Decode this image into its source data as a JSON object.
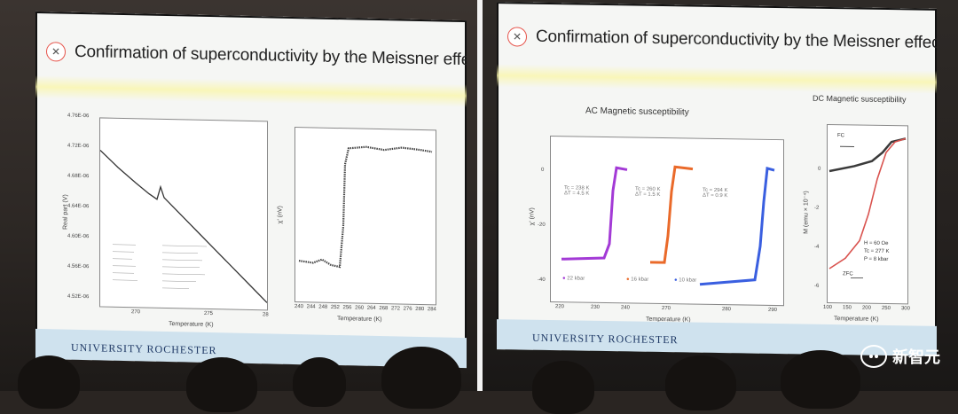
{
  "left_slide": {
    "title": "Confirmation of superconductivity by the Meissner effect",
    "icon": "circle-x-icon",
    "plot1": {
      "ylabel": "Real part (V)",
      "xlabel": "Temperature (K)",
      "yticks": [
        "4.76E-06",
        "4.72E-06",
        "4.68E-06",
        "4.64E-06",
        "4.60E-06",
        "4.56E-06",
        "4.52E-06"
      ],
      "xticks": [
        "270",
        "275",
        "28"
      ]
    },
    "plot2": {
      "ylabel": "χ' (nV)",
      "xlabel": "Temperature (K)",
      "xticks": [
        "240",
        "244",
        "248",
        "252",
        "256",
        "260",
        "264",
        "268",
        "272",
        "276",
        "280",
        "284"
      ]
    },
    "university": "UNIVERSITY ROCHESTER"
  },
  "right_slide": {
    "title": "Confirmation of superconductivity by the Meissner effect",
    "icon": "circle-x-icon",
    "ac": {
      "heading": "AC Magnetic susceptibility",
      "ylabel": "χ' (nV)",
      "xlabel": "Temperature (K)",
      "yticks": [
        "0",
        "-20",
        "-40"
      ],
      "xticks": [
        "220",
        "230",
        "240",
        "270",
        "280",
        "290"
      ],
      "annotations": [
        {
          "tc": "Tc = 238 K",
          "dt": "ΔT = 4.5 K"
        },
        {
          "tc": "Tc = 260 K",
          "dt": "ΔT = 1.5 K"
        },
        {
          "tc": "Tc = 294 K",
          "dt": "ΔT = 0.9 K"
        }
      ],
      "pressures": [
        "22 kbar",
        "16 kbar",
        "10 kbar"
      ],
      "colors": [
        "#a33ad6",
        "#ea6a2a",
        "#3a5fe0"
      ]
    },
    "dc": {
      "heading": "DC Magnetic susceptibility",
      "ylabel": "M (emu × 10⁻⁴)",
      "xlabel": "Temperature (K)",
      "labels": [
        "FC",
        "ZFC"
      ],
      "conditions": [
        "H = 60 Oe",
        "Tc = 277 K",
        "P = 8 kbar"
      ],
      "yticks": [
        "0",
        "-2",
        "-4",
        "-6"
      ],
      "xticks": [
        "100",
        "150",
        "200",
        "250",
        "300"
      ],
      "colors": [
        "#3a3a3a",
        "#d9534f"
      ]
    },
    "university": "UNIVERSITY ROCHESTER"
  },
  "watermark": {
    "text": "新智元",
    "icon": "wechat-icon"
  }
}
